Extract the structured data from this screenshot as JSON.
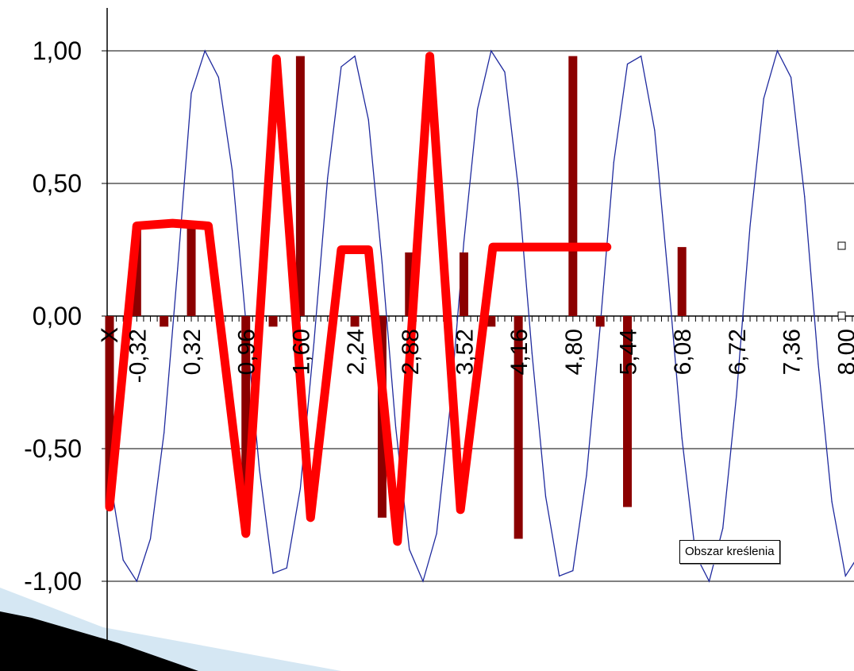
{
  "chart_data": {
    "type": "line",
    "xlabel": "X",
    "ylabel": "",
    "xlim": [
      -0.64,
      8.1
    ],
    "ylim": [
      -1.0,
      1.0
    ],
    "y_ticks": [
      "1,00",
      "0,50",
      "0,00",
      "-0,50",
      "-1,00"
    ],
    "y_tick_values": [
      1.0,
      0.5,
      0.0,
      -0.5,
      -1.0
    ],
    "x_ticks": [
      "-0,32",
      "0,32",
      "0,96",
      "1,60",
      "2,24",
      "2,88",
      "3,52",
      "4,16",
      "4,80",
      "5,44",
      "6,08",
      "6,72",
      "7,36",
      "8,00"
    ],
    "x_tick_values": [
      -0.32,
      0.32,
      0.96,
      1.6,
      2.24,
      2.88,
      3.52,
      4.16,
      4.8,
      5.44,
      6.08,
      6.72,
      7.36,
      8.0
    ],
    "grid": true,
    "series": [
      {
        "name": "",
        "style": "thin-line",
        "color": "#1f2a9e",
        "x": [
          -0.64,
          -0.48,
          -0.32,
          -0.16,
          0.0,
          0.16,
          0.32,
          0.48,
          0.64,
          0.8,
          0.96,
          1.12,
          1.28,
          1.44,
          1.6,
          1.76,
          1.92,
          2.08,
          2.24,
          2.4,
          2.56,
          2.72,
          2.88,
          3.04,
          3.2,
          3.36,
          3.52,
          3.68,
          3.84,
          4.0,
          4.16,
          4.32,
          4.48,
          4.64,
          4.8,
          4.96,
          5.12,
          5.28,
          5.44,
          5.6,
          5.76,
          5.92,
          6.08,
          6.24,
          6.4,
          6.56,
          6.72,
          6.88,
          7.04,
          7.2,
          7.36,
          7.52,
          7.68,
          7.84,
          8.0,
          8.16
        ],
        "y": [
          -0.6,
          -0.92,
          -1.0,
          -0.84,
          -0.44,
          0.18,
          0.84,
          1.0,
          0.9,
          0.55,
          -0.02,
          -0.58,
          -0.97,
          -0.95,
          -0.65,
          -0.1,
          0.52,
          0.94,
          0.98,
          0.74,
          0.2,
          -0.42,
          -0.88,
          -1.0,
          -0.82,
          -0.34,
          0.28,
          0.78,
          1.0,
          0.92,
          0.48,
          -0.14,
          -0.68,
          -0.98,
          -0.96,
          -0.6,
          -0.04,
          0.58,
          0.95,
          0.98,
          0.7,
          0.14,
          -0.46,
          -0.9,
          -1.0,
          -0.8,
          -0.3,
          0.34,
          0.82,
          1.0,
          0.9,
          0.45,
          -0.18,
          -0.7,
          -0.98,
          -0.9
        ]
      },
      {
        "name": "",
        "style": "stems",
        "color": "#8b0000",
        "x": [
          -0.64,
          -0.32,
          0.0,
          0.32,
          0.96,
          1.28,
          1.6,
          2.24,
          2.56,
          2.88,
          3.52,
          3.84,
          4.16,
          4.8,
          5.12,
          5.44,
          6.08,
          6.4,
          6.72,
          7.36,
          7.68,
          8.0
        ],
        "y": [
          -0.72,
          0.34,
          -0.04,
          0.34,
          -0.82,
          -0.04,
          0.98,
          -0.04,
          -0.76,
          0.24,
          0.24,
          -0.04,
          -0.84,
          0.98,
          -0.04,
          -0.72,
          0.26,
          0.0,
          0.0,
          0.0,
          0.0,
          0.0
        ]
      },
      {
        "name": "",
        "style": "thick-line",
        "color": "#ff0000",
        "x": [
          -0.64,
          -0.32,
          0.1,
          0.52,
          0.96,
          1.32,
          1.72,
          2.08,
          2.4,
          2.74,
          3.12,
          3.48,
          3.86,
          4.18,
          4.48,
          4.88,
          5.2
        ],
        "y": [
          -0.72,
          0.34,
          0.35,
          0.34,
          -0.82,
          0.97,
          -0.76,
          0.25,
          0.25,
          -0.85,
          0.98,
          -0.73,
          0.26,
          0.26,
          0.26,
          0.26,
          0.26
        ]
      }
    ]
  },
  "tooltip": {
    "label": "Obszar kreślenia"
  }
}
